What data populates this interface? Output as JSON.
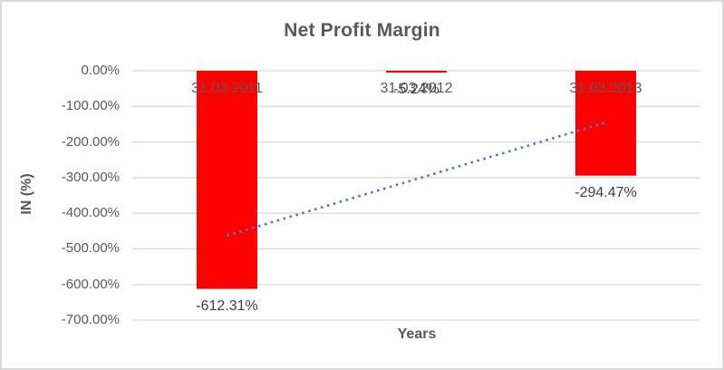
{
  "chart_data": {
    "type": "bar",
    "title": "Net Profit Margin",
    "xlabel": "Years",
    "ylabel": "IN (%)",
    "categories": [
      "31.03.2011",
      "31.03.2012",
      "31.03.2013"
    ],
    "values": [
      -612.31,
      -5.24,
      -294.47
    ],
    "data_labels": [
      "-612.31%",
      "-5.24%",
      "-294.47%"
    ],
    "ytick_labels": [
      "0.00%",
      "-100.00%",
      "-200.00%",
      "-300.00%",
      "-400.00%",
      "-500.00%",
      "-600.00%",
      "-700.00%"
    ],
    "ylim": [
      0,
      -700
    ],
    "grid": true,
    "legend": "none",
    "bar_color": "#ff0000",
    "trendline": {
      "type": "linear",
      "style": "dotted",
      "color": "#4a7ebb",
      "start_value": -462.9,
      "end_value": -145.1
    },
    "colors": {
      "title_text": "#595959",
      "axis_text": "#595959",
      "data_label_text": "#404040",
      "gridline": "#d9d9d9",
      "border": "#d9d9d9",
      "background": "#ffffff"
    }
  }
}
